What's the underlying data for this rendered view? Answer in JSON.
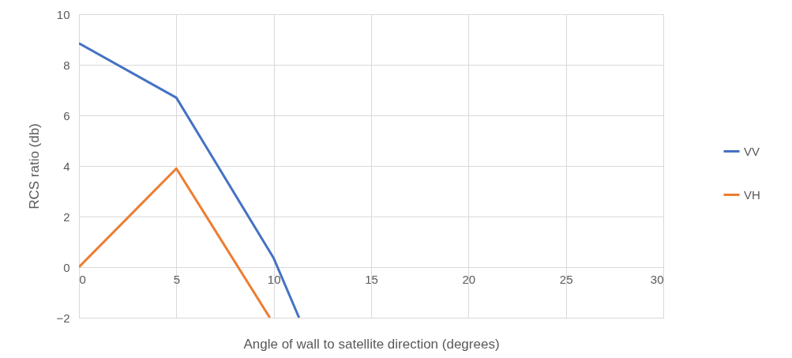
{
  "chart_data": {
    "type": "line",
    "xlabel": "Angle of wall to satellite direction (degrees)",
    "ylabel": "RCS ratio (db)",
    "xlim": [
      0,
      30
    ],
    "xticks": [
      0,
      5,
      10,
      15,
      20,
      25,
      30
    ],
    "ylim": [
      -2,
      10
    ],
    "yticks": [
      -2,
      0,
      2,
      4,
      6,
      8,
      10
    ],
    "grid": true,
    "legend": "right",
    "marker": "none",
    "line_style": "solid",
    "series": [
      {
        "name": "VV",
        "color": "#4472c4",
        "x": [
          0,
          5,
          10,
          11.3
        ],
        "values": [
          8.85,
          6.7,
          0.35,
          -2
        ]
      },
      {
        "name": "VH",
        "color": "#ed7d31",
        "x": [
          0,
          5,
          9.8
        ],
        "values": [
          0,
          3.9,
          -2
        ]
      }
    ]
  }
}
